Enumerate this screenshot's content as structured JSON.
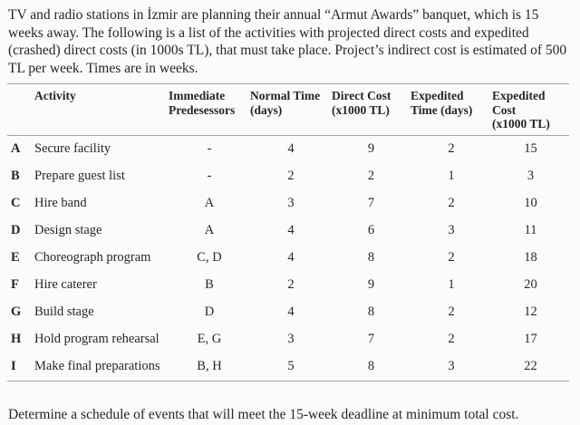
{
  "intro": "TV and radio stations in İzmir are planning their annual “Armut Awards” banquet, which is 15 weeks away. The following is a list of the activities with projected direct costs and expedited (crashed) direct costs (in 1000s TL), that must take place. Project’s indirect cost is estimated of 500 TL per week. Times are in weeks.",
  "table": {
    "headers": [
      [
        "Activity",
        ""
      ],
      [
        "Immediate",
        "Predesessors"
      ],
      [
        "Normal Time",
        "(days)"
      ],
      [
        "Direct Cost",
        "(x1000 TL)"
      ],
      [
        "Expedited",
        "Time (days)"
      ],
      [
        "Expedited Cost",
        "(x1000 TL)"
      ]
    ],
    "rows": [
      {
        "id": "A",
        "activity": "Secure facility",
        "predecessors": "-",
        "normal_time": "4",
        "direct_cost": "9",
        "expedited_time": "2",
        "expedited_cost": "15"
      },
      {
        "id": "B",
        "activity": "Prepare guest list",
        "predecessors": "-",
        "normal_time": "2",
        "direct_cost": "2",
        "expedited_time": "1",
        "expedited_cost": "3"
      },
      {
        "id": "C",
        "activity": "Hire band",
        "predecessors": "A",
        "normal_time": "3",
        "direct_cost": "7",
        "expedited_time": "2",
        "expedited_cost": "10"
      },
      {
        "id": "D",
        "activity": "Design stage",
        "predecessors": "A",
        "normal_time": "4",
        "direct_cost": "6",
        "expedited_time": "3",
        "expedited_cost": "11"
      },
      {
        "id": "E",
        "activity": "Choreograph program",
        "predecessors": "C, D",
        "normal_time": "4",
        "direct_cost": "8",
        "expedited_time": "2",
        "expedited_cost": "18"
      },
      {
        "id": "F",
        "activity": "Hire caterer",
        "predecessors": "B",
        "normal_time": "2",
        "direct_cost": "9",
        "expedited_time": "1",
        "expedited_cost": "20"
      },
      {
        "id": "G",
        "activity": "Build stage",
        "predecessors": "D",
        "normal_time": "4",
        "direct_cost": "8",
        "expedited_time": "2",
        "expedited_cost": "12"
      },
      {
        "id": "H",
        "activity": "Hold program rehearsal",
        "predecessors": "E, G",
        "normal_time": "3",
        "direct_cost": "7",
        "expedited_time": "2",
        "expedited_cost": "17"
      },
      {
        "id": "I",
        "activity": "Make final preparations",
        "predecessors": "B, H",
        "normal_time": "5",
        "direct_cost": "8",
        "expedited_time": "3",
        "expedited_cost": "22"
      }
    ]
  },
  "question": "Determine a schedule of events that will meet the 15-week deadline at minimum total cost."
}
